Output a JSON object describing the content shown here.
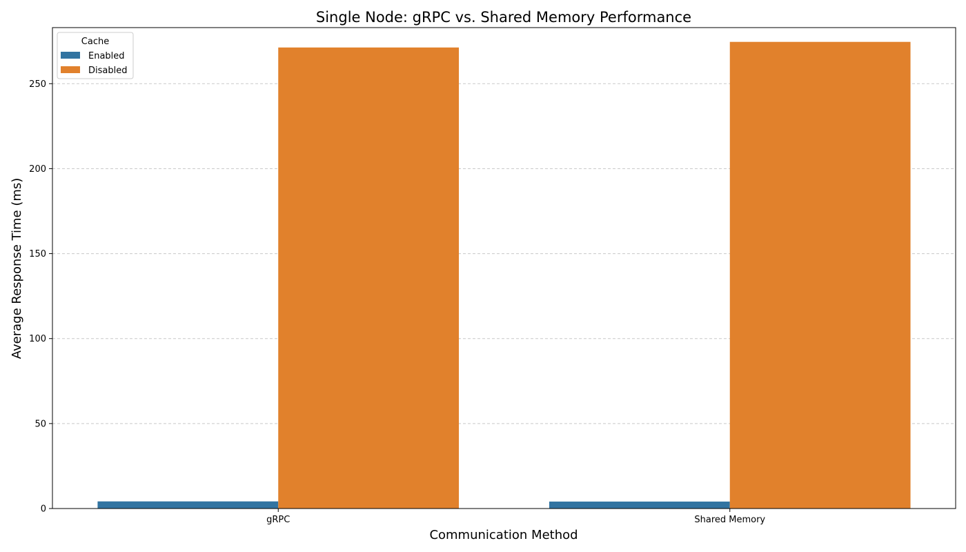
{
  "chart_data": {
    "type": "bar",
    "title": "Single Node: gRPC vs. Shared Memory Performance",
    "xlabel": "Communication Method",
    "ylabel": "Average Response Time (ms)",
    "categories": [
      "gRPC",
      "Shared Memory"
    ],
    "series": [
      {
        "name": "Enabled",
        "color": "#3274a1",
        "values": [
          4.2,
          4.1
        ]
      },
      {
        "name": "Disabled",
        "color": "#e1812c",
        "values": [
          271.3,
          274.6
        ]
      }
    ],
    "ylim": [
      0,
      283
    ],
    "yticks": [
      "0",
      "50",
      "100",
      "150",
      "200",
      "250"
    ],
    "grid": "y, dashed",
    "legend": {
      "title": "Cache",
      "placement": "top-left"
    }
  }
}
